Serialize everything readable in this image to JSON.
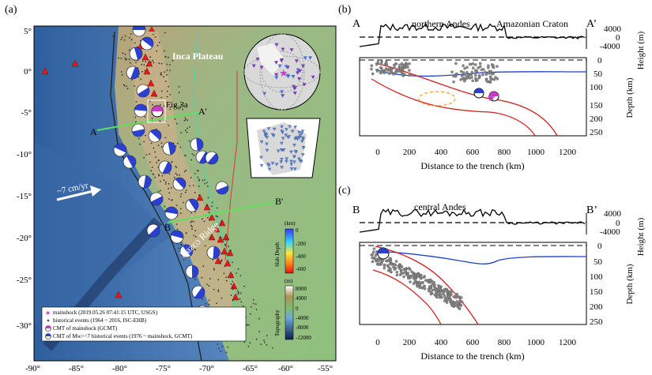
{
  "panel_a": {
    "label": "(a)",
    "lon_ticks": [
      "-90°",
      "-85°",
      "-80°",
      "-75°",
      "-70°",
      "-65°",
      "-60°",
      "-55°"
    ],
    "lat_ticks": [
      "5°",
      "0°",
      "-5°",
      "-10°",
      "-15°",
      "-20°",
      "-25°",
      "-30°"
    ],
    "place_labels": {
      "inca": "Inca Plateau",
      "nazca": "Nazca Ridge",
      "fig3a": "Fig.3a"
    },
    "velocity": "~7 cm/yr",
    "profile_labels": {
      "a": "A",
      "a_prime": "A'",
      "b": "B",
      "b_prime": "B'"
    },
    "slab_scale": {
      "title": "Slab Depth",
      "unit": "(km)",
      "ticks": [
        "0",
        "-200",
        "-400",
        "-600"
      ]
    },
    "topo_scale": {
      "title": "Topography",
      "unit": "(m)",
      "ticks": [
        "8000",
        "4000",
        "0",
        "-4000",
        "-8000",
        "-12000"
      ]
    },
    "legend": [
      "mainshock (2019.05.26 07:41:15 UTC, USGS)",
      "historical events (1964 ~ 2016, ISC-EHB)",
      "CMT of mainshock (GCMT)",
      "CMT of Mw>=7 historical events (1976 ~ mainshock, GCMT)"
    ]
  },
  "panel_b": {
    "label": "(b)",
    "left_end": "A",
    "right_end": "A’",
    "region1": "northern Andes",
    "region2": "Amazonian Craton",
    "height_label": "Height (m)",
    "height_ticks": [
      "4000",
      "0",
      "-4000"
    ],
    "depth_label": "Depth (km)",
    "depth_ticks": [
      "0",
      "50",
      "100",
      "150",
      "200",
      "250"
    ],
    "x_ticks": [
      "0",
      "200",
      "400",
      "600",
      "800",
      "1000",
      "1200"
    ],
    "xlabel": "Distance to the trench (km)"
  },
  "panel_c": {
    "label": "(c)",
    "left_end": "B",
    "right_end": "B’",
    "region1": "central Andes",
    "height_label": "Height (m)",
    "height_ticks": [
      "4000",
      "0",
      "-4000"
    ],
    "depth_label": "Depth (km)",
    "depth_ticks": [
      "0",
      "50",
      "100",
      "150",
      "200",
      "250"
    ],
    "x_ticks": [
      "0",
      "200",
      "400",
      "600",
      "800",
      "1000",
      "1200"
    ],
    "xlabel": "Distance to the trench (km)"
  },
  "colors": {
    "slab_line": "#d11f1f",
    "moho_line": "#1f3fd1",
    "quake": "#888888",
    "volcano": "#e41a1a",
    "mainshock": "#c93cc9",
    "profile": "#5fe05f"
  }
}
